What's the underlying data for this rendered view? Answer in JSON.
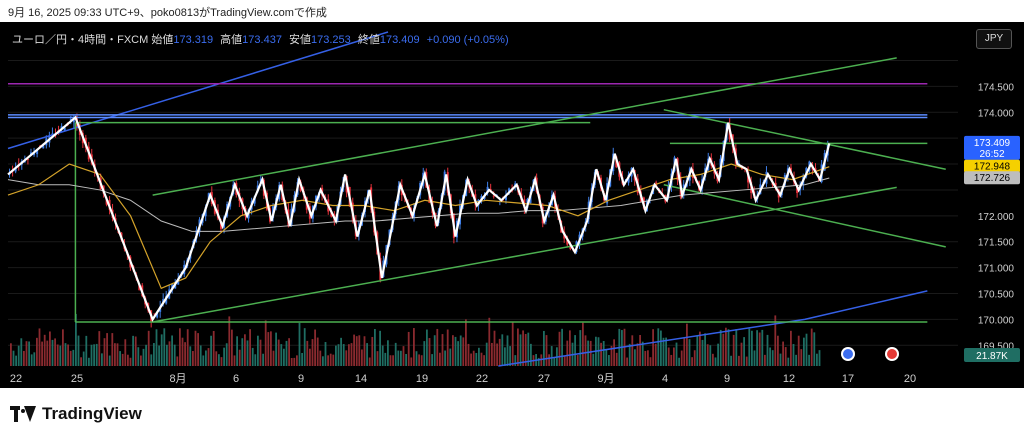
{
  "credit": "9月 16, 2025 09:33 UTC+9、poko0813がTradingView.comで作成",
  "legend": {
    "symbol": "ユーロ／円・4時間・FXCM",
    "open_label": "始値",
    "open": "173.319",
    "high_label": "高値",
    "high": "173.437",
    "low_label": "安値",
    "low": "173.253",
    "close_label": "終値",
    "close": "173.409",
    "change": "+0.090 (+0.05%)"
  },
  "currency_button": "JPY",
  "brand": "TradingView",
  "colors": {
    "background": "#000000",
    "up_candle": "#3f7fe8",
    "down_candle": "#e8323c",
    "zigzag": "#ffffff",
    "ma_fast": "#d4a32a",
    "ma_slow": "#bcbcbc",
    "channel": "#4caf50",
    "blue_trend": "#3560e6",
    "purple_line": "#9c27b0",
    "volume_up": "#1f6e63",
    "volume_down": "#8a2a2f"
  },
  "chart_data": {
    "type": "candlestick",
    "y_ticks": [
      169.5,
      170.0,
      170.5,
      171.0,
      171.5,
      172.0,
      172.5,
      173.0,
      173.5,
      174.0,
      174.5,
      175.0
    ],
    "y_tick_labels": [
      "169.500",
      "170.000",
      "170.500",
      "171.000",
      "171.500",
      "172.000",
      "",
      "",
      "",
      "174.000",
      "174.500",
      ""
    ],
    "ylim": [
      169.1,
      175.55
    ],
    "x_ticks": [
      "22",
      "25",
      "8月",
      "6",
      "9",
      "14",
      "19",
      "22",
      "27",
      "9月",
      "4",
      "9",
      "12",
      "17",
      "20"
    ],
    "price_labels": [
      {
        "value": 173.409,
        "text": "173.409",
        "sub": "26:52",
        "color": "#2962ff"
      },
      {
        "value": 172.948,
        "text": "172.948",
        "color": "#f5d000"
      },
      {
        "value": 172.726,
        "text": "172.726",
        "color": "#bdbdbd"
      }
    ],
    "volume_label": "21.87K",
    "zigzag": [
      [
        0.0,
        172.8
      ],
      [
        0.11,
        173.9
      ],
      [
        0.236,
        170.0
      ],
      [
        0.29,
        171.0
      ],
      [
        0.33,
        172.4
      ],
      [
        0.35,
        171.8
      ],
      [
        0.37,
        172.6
      ],
      [
        0.39,
        172.0
      ],
      [
        0.415,
        172.7
      ],
      [
        0.43,
        171.9
      ],
      [
        0.445,
        172.6
      ],
      [
        0.46,
        171.8
      ],
      [
        0.475,
        172.7
      ],
      [
        0.495,
        172.0
      ],
      [
        0.51,
        172.5
      ],
      [
        0.535,
        171.9
      ],
      [
        0.55,
        172.8
      ],
      [
        0.57,
        171.6
      ],
      [
        0.59,
        172.5
      ],
      [
        0.61,
        170.8
      ],
      [
        0.64,
        172.6
      ],
      [
        0.66,
        172.0
      ],
      [
        0.68,
        172.8
      ],
      [
        0.7,
        171.8
      ],
      [
        0.715,
        172.8
      ],
      [
        0.73,
        171.6
      ],
      [
        0.75,
        172.7
      ],
      [
        0.765,
        172.2
      ],
      [
        0.785,
        172.5
      ],
      [
        0.805,
        172.3
      ],
      [
        0.83,
        172.6
      ],
      [
        0.845,
        172.1
      ],
      [
        0.86,
        172.7
      ],
      [
        0.875,
        171.9
      ],
      [
        0.89,
        172.4
      ],
      [
        0.905,
        171.7
      ],
      [
        0.925,
        171.3
      ],
      [
        0.945,
        171.9
      ],
      [
        0.96,
        172.9
      ],
      [
        0.975,
        172.3
      ],
      [
        0.99,
        173.2
      ],
      [
        1.005,
        172.6
      ],
      [
        1.02,
        172.9
      ],
      [
        1.04,
        172.1
      ],
      [
        1.055,
        172.6
      ],
      [
        1.075,
        172.3
      ],
      [
        1.09,
        173.1
      ],
      [
        1.1,
        172.4
      ],
      [
        1.115,
        172.9
      ],
      [
        1.13,
        172.5
      ],
      [
        1.145,
        173.1
      ],
      [
        1.16,
        172.7
      ],
      [
        1.175,
        173.8
      ],
      [
        1.19,
        173.0
      ],
      [
        1.205,
        172.9
      ],
      [
        1.22,
        172.3
      ],
      [
        1.24,
        172.8
      ],
      [
        1.26,
        172.4
      ],
      [
        1.275,
        172.9
      ],
      [
        1.29,
        172.5
      ],
      [
        1.31,
        173.0
      ],
      [
        1.325,
        172.7
      ],
      [
        1.34,
        173.4
      ]
    ],
    "ma_fast": [
      [
        0.0,
        172.4
      ],
      [
        0.05,
        172.6
      ],
      [
        0.1,
        173.0
      ],
      [
        0.15,
        172.8
      ],
      [
        0.2,
        172.0
      ],
      [
        0.25,
        170.6
      ],
      [
        0.29,
        170.8
      ],
      [
        0.33,
        171.5
      ],
      [
        0.38,
        172.0
      ],
      [
        0.43,
        172.2
      ],
      [
        0.48,
        172.3
      ],
      [
        0.53,
        172.2
      ],
      [
        0.58,
        172.2
      ],
      [
        0.63,
        172.1
      ],
      [
        0.68,
        172.3
      ],
      [
        0.73,
        172.2
      ],
      [
        0.78,
        172.3
      ],
      [
        0.83,
        172.25
      ],
      [
        0.88,
        172.2
      ],
      [
        0.93,
        172.0
      ],
      [
        0.98,
        172.3
      ],
      [
        1.03,
        172.5
      ],
      [
        1.08,
        172.7
      ],
      [
        1.13,
        172.8
      ],
      [
        1.18,
        173.0
      ],
      [
        1.23,
        172.8
      ],
      [
        1.28,
        172.7
      ],
      [
        1.34,
        172.95
      ]
    ],
    "ma_slow": [
      [
        0.0,
        172.7
      ],
      [
        0.05,
        172.6
      ],
      [
        0.1,
        172.6
      ],
      [
        0.15,
        172.5
      ],
      [
        0.2,
        172.3
      ],
      [
        0.25,
        171.9
      ],
      [
        0.3,
        171.7
      ],
      [
        0.35,
        171.7
      ],
      [
        0.4,
        171.75
      ],
      [
        0.45,
        171.8
      ],
      [
        0.5,
        171.85
      ],
      [
        0.55,
        171.9
      ],
      [
        0.6,
        171.9
      ],
      [
        0.65,
        171.95
      ],
      [
        0.7,
        172.0
      ],
      [
        0.75,
        172.05
      ],
      [
        0.8,
        172.05
      ],
      [
        0.85,
        172.1
      ],
      [
        0.9,
        172.1
      ],
      [
        0.95,
        172.15
      ],
      [
        1.0,
        172.2
      ],
      [
        1.05,
        172.3
      ],
      [
        1.1,
        172.4
      ],
      [
        1.15,
        172.45
      ],
      [
        1.2,
        172.5
      ],
      [
        1.25,
        172.55
      ],
      [
        1.3,
        172.6
      ],
      [
        1.34,
        172.73
      ]
    ],
    "lines": [
      {
        "name": "blue-upper-trend",
        "color": "#3560e6",
        "p": [
          [
            0.0,
            173.3
          ],
          [
            0.62,
            175.55
          ]
        ]
      },
      {
        "name": "blue-lower-trend",
        "color": "#3560e6",
        "p": [
          [
            0.8,
            169.1
          ],
          [
            1.3,
            170.0
          ],
          [
            1.5,
            170.55
          ]
        ]
      },
      {
        "name": "purple-horizontal",
        "color": "#9c27b0",
        "p": [
          [
            0.0,
            174.55
          ],
          [
            1.5,
            174.55
          ]
        ]
      },
      {
        "name": "blue-horizontal-1",
        "color": "#5b8bff",
        "p": [
          [
            0.0,
            173.95
          ],
          [
            1.5,
            173.95
          ]
        ]
      },
      {
        "name": "blue-horizontal-2",
        "color": "#5b8bff",
        "p": [
          [
            0.0,
            173.9
          ],
          [
            1.5,
            173.9
          ]
        ]
      },
      {
        "name": "channel-upper",
        "color": "#4caf50",
        "p": [
          [
            0.236,
            172.4
          ],
          [
            1.45,
            175.05
          ]
        ]
      },
      {
        "name": "channel-lower",
        "color": "#4caf50",
        "p": [
          [
            0.236,
            169.95
          ],
          [
            1.45,
            172.55
          ]
        ]
      },
      {
        "name": "channel-box-top",
        "color": "#4caf50",
        "p": [
          [
            0.11,
            173.8
          ],
          [
            0.95,
            173.8
          ]
        ]
      },
      {
        "name": "channel-box-left",
        "color": "#4caf50",
        "p": [
          [
            0.11,
            173.8
          ],
          [
            0.11,
            169.95
          ]
        ]
      },
      {
        "name": "channel-box-bottom",
        "color": "#4caf50",
        "p": [
          [
            0.11,
            169.95
          ],
          [
            1.5,
            169.95
          ]
        ]
      },
      {
        "name": "green-horizontal-right",
        "color": "#4caf50",
        "p": [
          [
            1.08,
            173.4
          ],
          [
            1.5,
            173.4
          ]
        ]
      },
      {
        "name": "falling-line-upper",
        "color": "#4caf50",
        "p": [
          [
            1.07,
            174.05
          ],
          [
            1.53,
            172.9
          ]
        ]
      },
      {
        "name": "falling-line-lower",
        "color": "#4caf50",
        "p": [
          [
            1.07,
            172.6
          ],
          [
            1.53,
            171.4
          ]
        ]
      }
    ]
  }
}
